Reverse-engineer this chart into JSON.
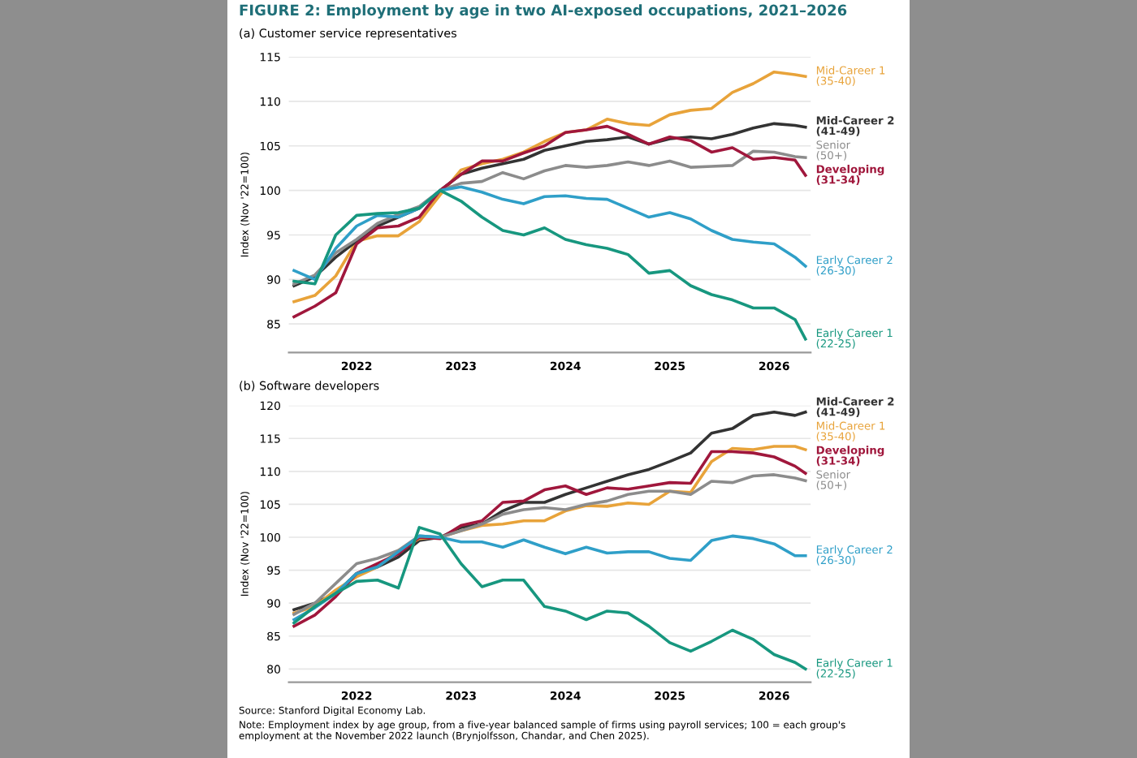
{
  "chart_data": [
    {
      "type": "line",
      "title": "FIGURE 2: Employment by age in two AI-exposed occupations, 2021–2026",
      "subtitle": "(a) Customer service representatives",
      "ylabel": "Index (Nov '22=100)",
      "x": [
        2021.4,
        2021.6,
        2021.8,
        2022.0,
        2022.2,
        2022.4,
        2022.6,
        2022.8,
        2023.0,
        2023.2,
        2023.4,
        2023.6,
        2023.8,
        2024.0,
        2024.2,
        2024.4,
        2024.6,
        2024.8,
        2025.0,
        2025.2,
        2025.4,
        2025.6,
        2025.8,
        2026.0,
        2026.2,
        2026.3
      ],
      "xlim": [
        2021.35,
        2026.35
      ],
      "xticks": [
        2022,
        2023,
        2024,
        2025,
        2026
      ],
      "ylim": [
        81.8,
        115
      ],
      "yticks": [
        85,
        90,
        95,
        100,
        105,
        110,
        115
      ],
      "grid": "y",
      "legend": false,
      "tick_labels": "xy",
      "series": [
        {
          "name": "Mid-Career 1\n(35-40)",
          "color": "#e8a33a",
          "values": [
            87.5,
            88.2,
            90.4,
            94.3,
            94.9,
            94.9,
            96.5,
            99.5,
            102.3,
            103,
            103.5,
            104.3,
            105.5,
            106.5,
            106.8,
            108,
            107.5,
            107.3,
            108.5,
            109,
            109.2,
            111,
            112,
            113.3,
            113,
            112.8
          ]
        },
        {
          "name": "Mid-Career 2\n(41-49)",
          "color": "#333333",
          "values": [
            89.3,
            90.3,
            92.5,
            94.3,
            96,
            97,
            98,
            100,
            101.8,
            102.5,
            103,
            103.5,
            104.5,
            105,
            105.5,
            105.7,
            106,
            105.2,
            105.8,
            106,
            105.8,
            106.3,
            107,
            107.5,
            107.3,
            107.1
          ]
        },
        {
          "name": "Senior\n(50+)",
          "color": "#8c8c8c",
          "values": [
            89.5,
            90.5,
            93,
            94.5,
            96.3,
            97.3,
            98.2,
            100,
            100.8,
            101,
            102,
            101.3,
            102.2,
            102.8,
            102.6,
            102.8,
            103.2,
            102.8,
            103.3,
            102.6,
            102.7,
            102.8,
            104.4,
            104.3,
            103.8,
            103.7
          ]
        },
        {
          "name": "Developing\n(31-34)",
          "color": "#a0173c",
          "values": [
            85.8,
            87,
            88.5,
            94,
            95.8,
            96,
            97,
            100,
            101.8,
            103.3,
            103.3,
            104.2,
            105,
            106.5,
            106.8,
            107.2,
            106.3,
            105.2,
            106,
            105.6,
            104.3,
            104.8,
            103.5,
            103.7,
            103.4,
            101.7
          ]
        },
        {
          "name": "Early Career 2\n(26-30)",
          "color": "#2f9fc8",
          "values": [
            91,
            90,
            93.5,
            96,
            97.2,
            97,
            98,
            100,
            100.4,
            99.8,
            99,
            98.5,
            99.3,
            99.4,
            99.1,
            99,
            98,
            97,
            97.5,
            96.8,
            95.5,
            94.5,
            94.2,
            94,
            92.5,
            91.5
          ]
        },
        {
          "name": "Early Career 1\n(22-25)",
          "color": "#17977f",
          "values": [
            89.8,
            89.5,
            95,
            97.2,
            97.4,
            97.5,
            98,
            100,
            98.8,
            97,
            95.5,
            95,
            95.8,
            94.5,
            93.9,
            93.5,
            92.8,
            90.7,
            91,
            89.3,
            88.3,
            87.7,
            86.8,
            86.8,
            85.5,
            83.3
          ]
        }
      ]
    },
    {
      "type": "line",
      "subtitle": "(b) Software developers",
      "ylabel": "Index (Nov '22=100)",
      "x": [
        2021.4,
        2021.6,
        2021.8,
        2022.0,
        2022.2,
        2022.4,
        2022.6,
        2022.8,
        2023.0,
        2023.2,
        2023.4,
        2023.6,
        2023.8,
        2024.0,
        2024.2,
        2024.4,
        2024.6,
        2024.8,
        2025.0,
        2025.2,
        2025.4,
        2025.6,
        2025.8,
        2026.0,
        2026.2,
        2026.3
      ],
      "xlim": [
        2021.35,
        2026.35
      ],
      "xticks": [
        2022,
        2023,
        2024,
        2025,
        2026
      ],
      "ylim": [
        78,
        120
      ],
      "yticks": [
        80,
        85,
        90,
        95,
        100,
        105,
        110,
        115,
        120
      ],
      "grid": "y",
      "legend": false,
      "series": [
        {
          "name": "Mid-Career 2\n(41-49)",
          "color": "#333333",
          "values": [
            89,
            90,
            91.5,
            94.5,
            95.5,
            97,
            99.5,
            100,
            101.5,
            102,
            104,
            105.3,
            105.3,
            106.5,
            107.5,
            108.5,
            109.5,
            110.3,
            111.5,
            112.8,
            115.8,
            116.5,
            118.5,
            119,
            118.5,
            119
          ]
        },
        {
          "name": "Mid-Career 1\n(35-40)",
          "color": "#e8a33a",
          "values": [
            88.5,
            89.5,
            92,
            94,
            95.5,
            98,
            99.8,
            100,
            101,
            101.8,
            102,
            102.5,
            102.5,
            104,
            104.8,
            104.7,
            105.2,
            105,
            107,
            106.8,
            111.5,
            113.5,
            113.3,
            113.8,
            113.8,
            113.3
          ]
        },
        {
          "name": "Developing\n(31-34)",
          "color": "#a0173c",
          "values": [
            86.5,
            88.2,
            91,
            94.5,
            96,
            97.5,
            100,
            99.8,
            101.8,
            102.5,
            105.3,
            105.5,
            107.2,
            107.8,
            106.5,
            107.5,
            107.3,
            107.8,
            108.3,
            108.2,
            113,
            113,
            112.8,
            112.2,
            110.8,
            109.7
          ]
        },
        {
          "name": "Senior\n(50+)",
          "color": "#8c8c8c",
          "values": [
            88.3,
            90,
            93,
            96,
            96.8,
            98,
            100.2,
            100,
            101,
            102,
            103.5,
            104.2,
            104.5,
            104.2,
            105,
            105.5,
            106.5,
            107,
            107,
            106.5,
            108.5,
            108.3,
            109.3,
            109.5,
            109,
            108.6
          ]
        },
        {
          "name": "Early Career 2\n(26-30)",
          "color": "#2f9fc8",
          "values": [
            87.5,
            89.3,
            91.5,
            94.5,
            95.5,
            97.8,
            100.2,
            100,
            99.3,
            99.3,
            98.5,
            99.6,
            98.5,
            97.5,
            98.5,
            97.6,
            97.8,
            97.8,
            96.8,
            96.5,
            99.5,
            100.2,
            99.8,
            99,
            97.2,
            97.2
          ]
        },
        {
          "name": "Early Career 1\n(22-25)",
          "color": "#17977f",
          "values": [
            87,
            89.5,
            91.5,
            93.3,
            93.5,
            92.3,
            101.5,
            100.5,
            96,
            92.5,
            93.5,
            93.5,
            89.5,
            88.8,
            87.5,
            88.8,
            88.5,
            86.5,
            84,
            82.7,
            84.2,
            85.9,
            84.5,
            82.2,
            81,
            80
          ]
        }
      ],
      "annotations": [
        "Source: Stanford Digital Economy Lab.",
        "Note: Employment index by age group, from a five-year balanced sample of firms using payroll services; 100 = each group's employment at the November 2022 launch (Brynjolfsson, Chandar, and Chen 2025)."
      ]
    }
  ]
}
